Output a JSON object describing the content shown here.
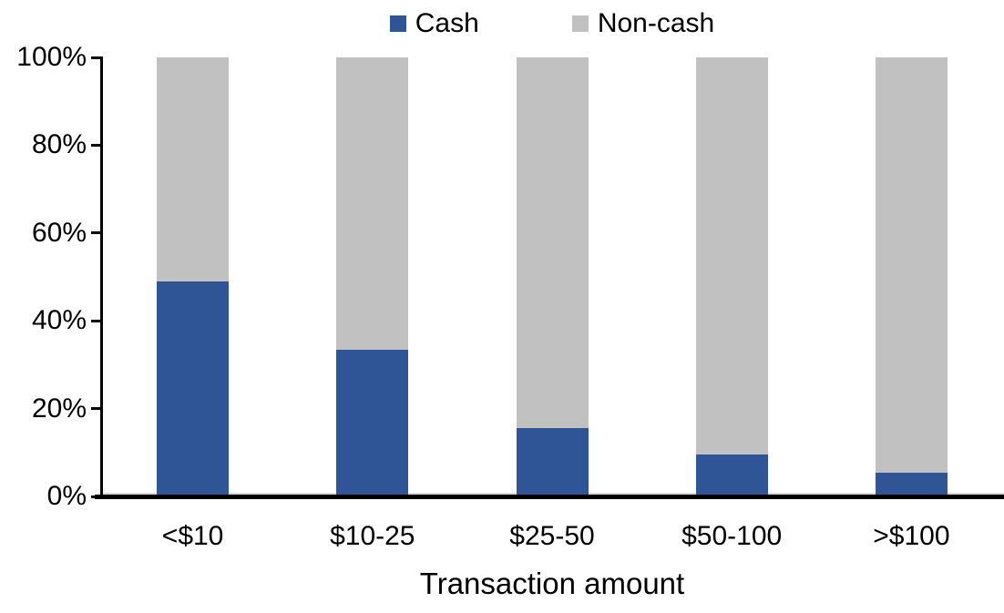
{
  "chart_data": {
    "type": "bar",
    "variant": "100%-stacked-column",
    "title": "",
    "xlabel": "Transaction amount",
    "ylabel": "",
    "categories": [
      "<$10",
      "$10-25",
      "$25-50",
      "$50-100",
      ">$100"
    ],
    "series": [
      {
        "name": "Cash",
        "color": "#2f5596",
        "values": [
          49,
          33.5,
          15.5,
          9.5,
          5.5
        ]
      },
      {
        "name": "Non-cash",
        "color": "#c1c1c1",
        "values": [
          51,
          66.5,
          84.5,
          90.5,
          94.5
        ]
      }
    ],
    "ylim": [
      0,
      100
    ],
    "yticks": [
      {
        "value": 0,
        "label": "0%"
      },
      {
        "value": 20,
        "label": "20%"
      },
      {
        "value": 40,
        "label": "40%"
      },
      {
        "value": 60,
        "label": "60%"
      },
      {
        "value": 80,
        "label": "80%"
      },
      {
        "value": 100,
        "label": "100%"
      }
    ],
    "legend_position": "top-center",
    "grid": false,
    "axis_color": "#000000",
    "background_color": "#ffffff"
  }
}
